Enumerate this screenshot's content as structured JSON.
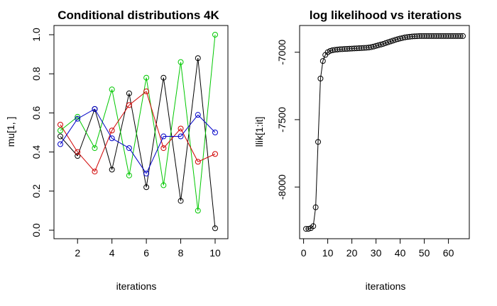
{
  "chart_data": [
    {
      "type": "line",
      "title": "Conditional distributions 4K",
      "xlabel": "iterations",
      "ylabel": "mu[1, ]",
      "xlim": [
        1,
        10
      ],
      "ylim": [
        0.0,
        1.0
      ],
      "x_ticks": [
        "2",
        "4",
        "6",
        "8",
        "10"
      ],
      "y_ticks": [
        "0.0",
        "0.2",
        "0.4",
        "0.6",
        "0.8",
        "1.0"
      ],
      "x": [
        1,
        2,
        3,
        4,
        5,
        6,
        7,
        8,
        9,
        10
      ],
      "markers": "open-circle",
      "series": [
        {
          "color": "#000000",
          "values": [
            0.48,
            0.38,
            0.62,
            0.31,
            0.7,
            0.22,
            0.78,
            0.15,
            0.88,
            0.01
          ]
        },
        {
          "color": "#00c800",
          "values": [
            0.51,
            0.58,
            0.42,
            0.72,
            0.28,
            0.78,
            0.23,
            0.86,
            0.1,
            1.0
          ]
        },
        {
          "color": "#d00000",
          "values": [
            0.54,
            0.4,
            0.3,
            0.51,
            0.64,
            0.71,
            0.42,
            0.52,
            0.35,
            0.39
          ]
        },
        {
          "color": "#0000c8",
          "values": [
            0.44,
            0.57,
            0.62,
            0.47,
            0.42,
            0.29,
            0.48,
            0.48,
            0.59,
            0.5
          ]
        }
      ]
    },
    {
      "type": "line",
      "title": "log likelihood vs iterations",
      "xlabel": "iterations",
      "ylabel": "llik[1:it]",
      "xlim": [
        1,
        66
      ],
      "ylim": [
        -8320,
        -6870
      ],
      "x_ticks": [
        "0",
        "10",
        "20",
        "30",
        "40",
        "50",
        "60"
      ],
      "y_ticks": [
        "-8000",
        "-7500",
        "-7000"
      ],
      "markers": "open-circle",
      "series": [
        {
          "color": "#000000",
          "x": [
            1,
            2,
            3,
            4,
            5,
            6,
            7,
            8,
            9,
            10,
            11,
            12,
            13,
            14,
            15,
            16,
            17,
            18,
            19,
            20,
            21,
            22,
            23,
            24,
            25,
            26,
            27,
            28,
            29,
            30,
            31,
            32,
            33,
            34,
            35,
            36,
            37,
            38,
            39,
            40,
            41,
            42,
            43,
            44,
            45,
            46,
            47,
            48,
            49,
            50,
            51,
            52,
            53,
            54,
            55,
            56,
            57,
            58,
            59,
            60,
            61,
            62,
            63,
            64,
            65,
            66
          ],
          "values": [
            -8310,
            -8310,
            -8305,
            -8290,
            -8150,
            -7665,
            -7195,
            -7065,
            -7020,
            -7000,
            -6990,
            -6985,
            -6982,
            -6980,
            -6978,
            -6977,
            -6976,
            -6975,
            -6974,
            -6973,
            -6972,
            -6971,
            -6970,
            -6969,
            -6968,
            -6967,
            -6965,
            -6962,
            -6958,
            -6953,
            -6948,
            -6943,
            -6938,
            -6932,
            -6926,
            -6920,
            -6914,
            -6908,
            -6903,
            -6898,
            -6894,
            -6890,
            -6887,
            -6885,
            -6883,
            -6882,
            -6881,
            -6880,
            -6880,
            -6880,
            -6880,
            -6880,
            -6880,
            -6880,
            -6880,
            -6880,
            -6880,
            -6880,
            -6880,
            -6880,
            -6880,
            -6880,
            -6880,
            -6880,
            -6880,
            -6880
          ]
        }
      ]
    }
  ]
}
